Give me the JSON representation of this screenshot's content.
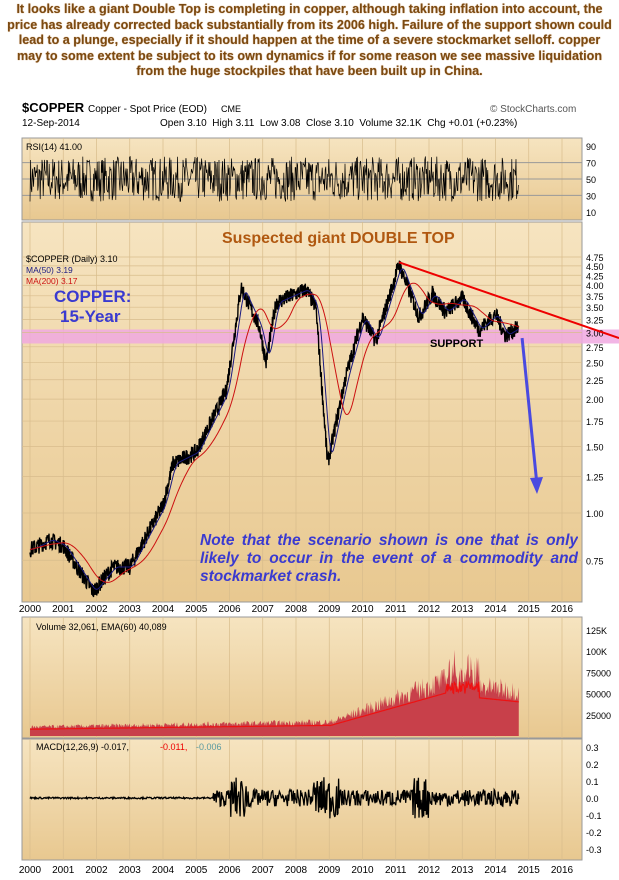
{
  "intro": "It looks like a giant Double Top is completing in copper, although taking inflation into account, the price has already corrected back substantially from its 2006 high. Failure of the support shown could lead to a plunge, especially if it should happen at the time of a severe stockmarket selloff. copper may to some extent be subject to its own dynamics if for some reason we see massive liquidation from the huge stockpiles that have been built up in China.",
  "header": {
    "symbol": "$COPPER",
    "name": "Copper - Spot Price (EOD)",
    "exchange": "CME",
    "date": "12-Sep-2014",
    "watermark": "© StockCharts.com",
    "quote": "Open 3.10  High 3.11  Low 3.08  Close 3.10  Volume 32.1K  Chg +0.01 (+0.23%)"
  },
  "colors": {
    "panel": "#f0d8a8",
    "price": "#000000",
    "ma50": "#1a1a80",
    "ma200": "#cc1111",
    "annot": "#b05810",
    "blue": "#3a3ad0",
    "support": "#f0a8e0"
  },
  "chart_data": [
    {
      "type": "line",
      "title": "RSI(14) 41.00",
      "ylim": [
        0,
        100
      ],
      "ticks": [
        "90",
        "70",
        "50",
        "30",
        "10"
      ]
    },
    {
      "type": "line",
      "title": "$COPPER (Daily) 3.10",
      "yscale": "log",
      "ylim": [
        0.55,
        4.9
      ],
      "ticks": [
        "4.75",
        "4.50",
        "4.25",
        "4.00",
        "3.75",
        "3.50",
        "3.25",
        "3.00",
        "2.75",
        "2.50",
        "2.25",
        "2.00",
        "1.75",
        "1.50",
        "1.25",
        "1.00",
        "0.75"
      ],
      "tick_values": [
        4.75,
        4.5,
        4.25,
        4,
        3.75,
        3.5,
        3.25,
        3,
        2.75,
        2.5,
        2.25,
        2,
        1.75,
        1.5,
        1.25,
        1,
        0.75
      ],
      "x": [
        2000,
        2000.6,
        2001.0,
        2001.9,
        2002.5,
        2003.0,
        2004.0,
        2004.3,
        2005.0,
        2005.9,
        2006.35,
        2006.9,
        2007.1,
        2007.4,
        2008.3,
        2008.6,
        2008.95,
        2009.5,
        2010.0,
        2010.4,
        2011.1,
        2011.7,
        2012.1,
        2012.5,
        2013.0,
        2013.5,
        2014.0,
        2014.3,
        2014.7
      ],
      "price": [
        0.8,
        0.85,
        0.82,
        0.62,
        0.72,
        0.72,
        1.05,
        1.35,
        1.45,
        2.1,
        3.95,
        3.1,
        2.5,
        3.6,
        3.9,
        3.5,
        1.35,
        2.3,
        3.3,
        2.85,
        4.55,
        3.3,
        3.8,
        3.4,
        3.7,
        3.05,
        3.35,
        2.95,
        3.1
      ],
      "legend": [
        "MA(50) 3.19",
        "MA(200) 3.17"
      ],
      "annotations": {
        "double_top": "Suspected giant DOUBLE TOP",
        "label1": "COPPER:",
        "label2": "15-Year",
        "support": "SUPPORT",
        "note": "Note that the scenario shown is one that is only likely to occur in the event of a commodity and stockmarket crash."
      }
    },
    {
      "type": "area",
      "title": "Volume 32,061, EMA(60) 40,089",
      "ticks": [
        "125K",
        "100K",
        "75000",
        "50000",
        "25000"
      ],
      "tick_values": [
        125000,
        100000,
        75000,
        50000,
        25000
      ]
    },
    {
      "type": "line",
      "title_main": "MACD(12,26,9) -0.017,",
      "title_sig": "-0.011,",
      "title_hist": "-0.006",
      "ticks": [
        "0.3",
        "0.2",
        "0.1",
        "0.0",
        "-0.1",
        "-0.2",
        "-0.3"
      ],
      "tick_values": [
        0.3,
        0.2,
        0.1,
        0,
        -0.1,
        -0.2,
        -0.3
      ]
    }
  ],
  "years": [
    "2000",
    "2001",
    "2002",
    "2003",
    "2004",
    "2005",
    "2006",
    "2007",
    "2008",
    "2009",
    "2010",
    "2011",
    "2012",
    "2013",
    "2014",
    "2015",
    "2016"
  ]
}
